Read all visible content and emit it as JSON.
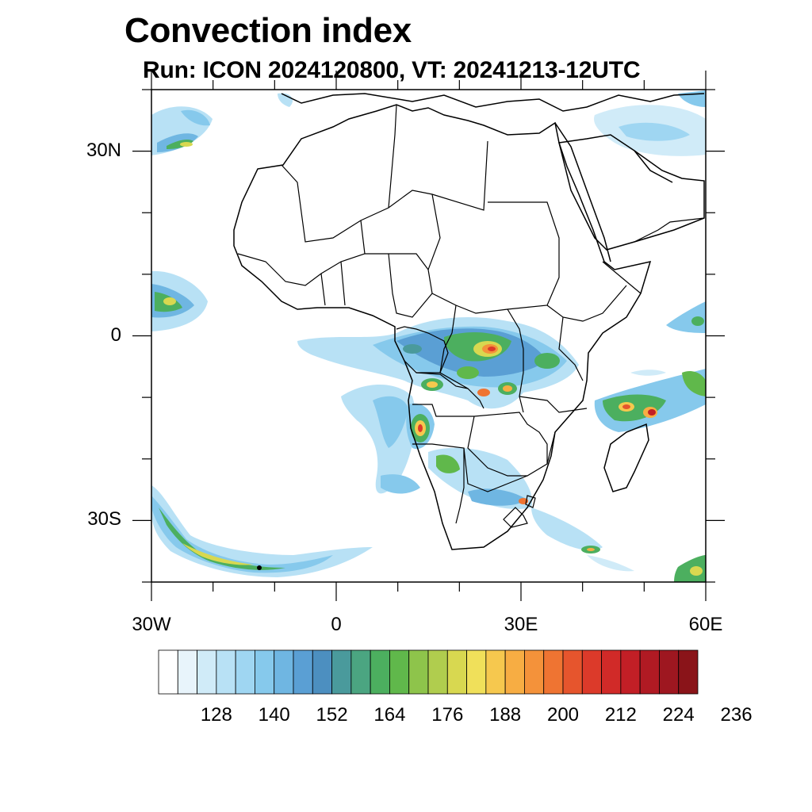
{
  "title": "Convection index",
  "subtitle": "Run: ICON 2024120800,  VT: 20241213-12UTC",
  "map": {
    "projection": "cylindrical-equidistant",
    "lon_range": [
      -30,
      60
    ],
    "lat_range": [
      -40,
      40
    ],
    "lat_tick_labels": [
      {
        "lat": 30,
        "label": "30N"
      },
      {
        "lat": 0,
        "label": "0"
      },
      {
        "lat": -30,
        "label": "30S"
      }
    ],
    "lon_tick_labels": [
      {
        "lon": -30,
        "label": "30W"
      },
      {
        "lon": 0,
        "label": "0"
      },
      {
        "lon": 30,
        "label": "30E"
      },
      {
        "lon": 60,
        "label": "60E"
      }
    ],
    "minor_tick_step_deg": 10,
    "features": [
      "coastlines",
      "country-borders"
    ]
  },
  "colorbar": {
    "colors": [
      "#ffffff",
      "#e8f4fb",
      "#d0ebf8",
      "#b8e1f5",
      "#9fd6f2",
      "#86c9ec",
      "#6fb6e2",
      "#5a9fd4",
      "#4c8fc0",
      "#4a9a9c",
      "#4ba581",
      "#4caf5f",
      "#60b84b",
      "#8ec44b",
      "#b0cd4e",
      "#d8d850",
      "#f0e05a",
      "#f6c84e",
      "#f7ad43",
      "#f4923a",
      "#ef7432",
      "#e6552d",
      "#dc3a2a",
      "#d12a28",
      "#c21f26",
      "#b01a23",
      "#9e1720",
      "#8a1419"
    ],
    "labels": [
      "128",
      "140",
      "152",
      "164",
      "176",
      "188",
      "200",
      "212",
      "224",
      "236"
    ]
  }
}
